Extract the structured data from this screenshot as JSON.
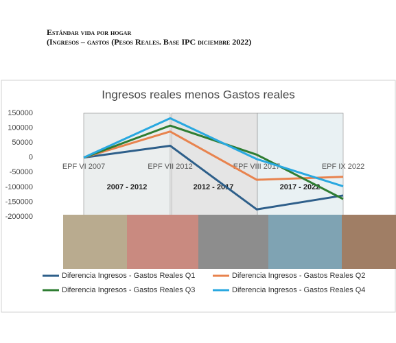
{
  "header": {
    "title": "Estándar vida por hogar",
    "subtitle": "(Ingresos – gastos (Pesos Reales. Base IPC diciembre 2022)"
  },
  "chart_data": {
    "type": "line",
    "title": "Ingresos reales menos Gastos reales",
    "categories": [
      "EPF VI 2007",
      "EPF VII 2012",
      "EPF VIII 2017",
      "EPF IX 2022"
    ],
    "periods": [
      "2007 - 2012",
      "2012 - 2017",
      "2017 - 2022"
    ],
    "series": [
      {
        "name": "Diferencia Ingresos - Gastos Reales Q1",
        "color": "#2e5f8a",
        "values": [
          0,
          40000,
          -175000,
          -128000
        ]
      },
      {
        "name": "Diferencia Ingresos - Gastos Reales Q2",
        "color": "#e8834e",
        "values": [
          0,
          88000,
          -75000,
          -65000
        ]
      },
      {
        "name": "Diferencia Ingresos - Gastos Reales Q3",
        "color": "#2e7d32",
        "values": [
          0,
          108000,
          10000,
          -140000
        ]
      },
      {
        "name": "Diferencia Ingresos - Gastos Reales Q4",
        "color": "#29a8e0",
        "values": [
          0,
          133000,
          -5000,
          -97000
        ]
      }
    ],
    "ylim": [
      -200000,
      150000
    ],
    "yticks": [
      -200000,
      -150000,
      -100000,
      -50000,
      0,
      50000,
      100000,
      150000
    ],
    "grid": false,
    "legend": "bottom"
  }
}
